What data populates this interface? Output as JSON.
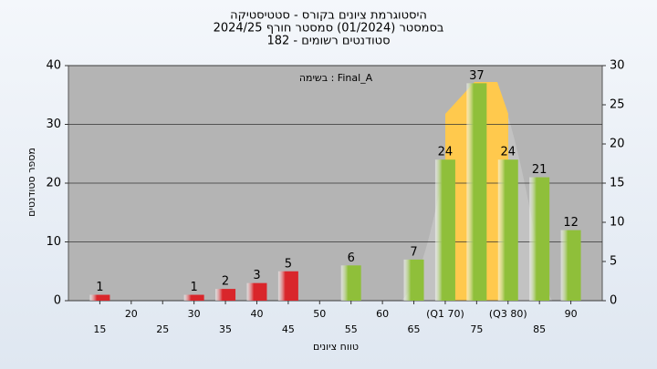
{
  "chart_data": {
    "type": "bar",
    "title": [
      "היסטוגרמת ציונים בקורס - סטטיסטיקה",
      "בסמסטר  (01/2024)  סמסטר חורף 2024/25",
      "סטודנטים רשומים - 182"
    ],
    "annotation": "בשימה : Final_A",
    "ylabel": "מספר סטודנטים",
    "xlabel": "טווח ציונים",
    "x": [
      15,
      20,
      25,
      30,
      35,
      40,
      45,
      50,
      55,
      60,
      65,
      70,
      75,
      80,
      85,
      90
    ],
    "values": [
      1,
      0,
      0,
      1,
      2,
      3,
      5,
      0,
      6,
      0,
      7,
      24,
      37,
      24,
      21,
      12
    ],
    "colors": [
      "#d9262b",
      "#d9262b",
      "#d9262b",
      "#d9262b",
      "#d9262b",
      "#d9262b",
      "#d9262b",
      "#d9262b",
      "#8fbf3a",
      "#8fbf3a",
      "#8fbf3a",
      "#8fbf3a",
      "#8fbf3a",
      "#8fbf3a",
      "#8fbf3a",
      "#8fbf3a"
    ],
    "xlim": [
      10,
      95
    ],
    "xticks": [
      15,
      20,
      25,
      30,
      35,
      40,
      45,
      50,
      55,
      60,
      65,
      {
        "value": 70,
        "label": "(Q1 70)"
      },
      75,
      {
        "value": 80,
        "label": "(Q3 80)"
      },
      85,
      90
    ],
    "ylim": [
      0,
      40
    ],
    "yticks": [
      0,
      10,
      20,
      30,
      40
    ],
    "y2lim": [
      0,
      30
    ],
    "y2ticks": [
      0,
      5,
      10,
      15,
      20,
      25,
      30
    ],
    "grid": true
  }
}
